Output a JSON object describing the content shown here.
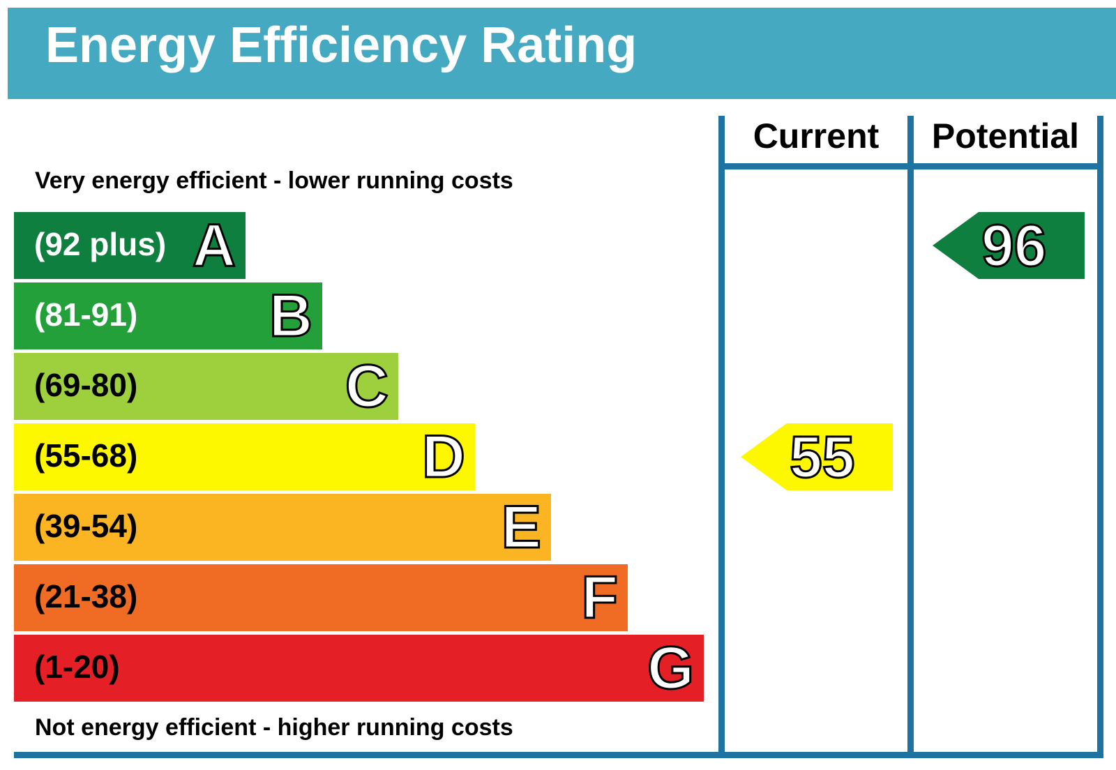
{
  "chart_data": {
    "type": "bar",
    "title": "Energy Efficiency Rating",
    "top_caption": "Very energy efficient - lower running costs",
    "bottom_caption": "Not energy efficient - higher running costs",
    "bands": [
      {
        "letter": "A",
        "range": "(92 plus)",
        "color": "#0f7f3f",
        "text_color": "#ffffff"
      },
      {
        "letter": "B",
        "range": "(81-91)",
        "color": "#23a03a",
        "text_color": "#ffffff"
      },
      {
        "letter": "C",
        "range": "(69-80)",
        "color": "#9ecf3c",
        "text_color": "#000000"
      },
      {
        "letter": "D",
        "range": "(55-68)",
        "color": "#fdf700",
        "text_color": "#000000"
      },
      {
        "letter": "E",
        "range": "(39-54)",
        "color": "#fbb522",
        "text_color": "#000000"
      },
      {
        "letter": "F",
        "range": "(21-38)",
        "color": "#f06b24",
        "text_color": "#000000"
      },
      {
        "letter": "G",
        "range": "(1-20)",
        "color": "#e51f26",
        "text_color": "#000000"
      }
    ],
    "columns": {
      "current": {
        "label": "Current",
        "value": 55,
        "band": "D",
        "color": "#fdf700"
      },
      "potential": {
        "label": "Potential",
        "value": 96,
        "band": "A",
        "color": "#0f7f3f"
      }
    },
    "frame_color": "#1f73a0",
    "header_color": "#45a9c1"
  }
}
